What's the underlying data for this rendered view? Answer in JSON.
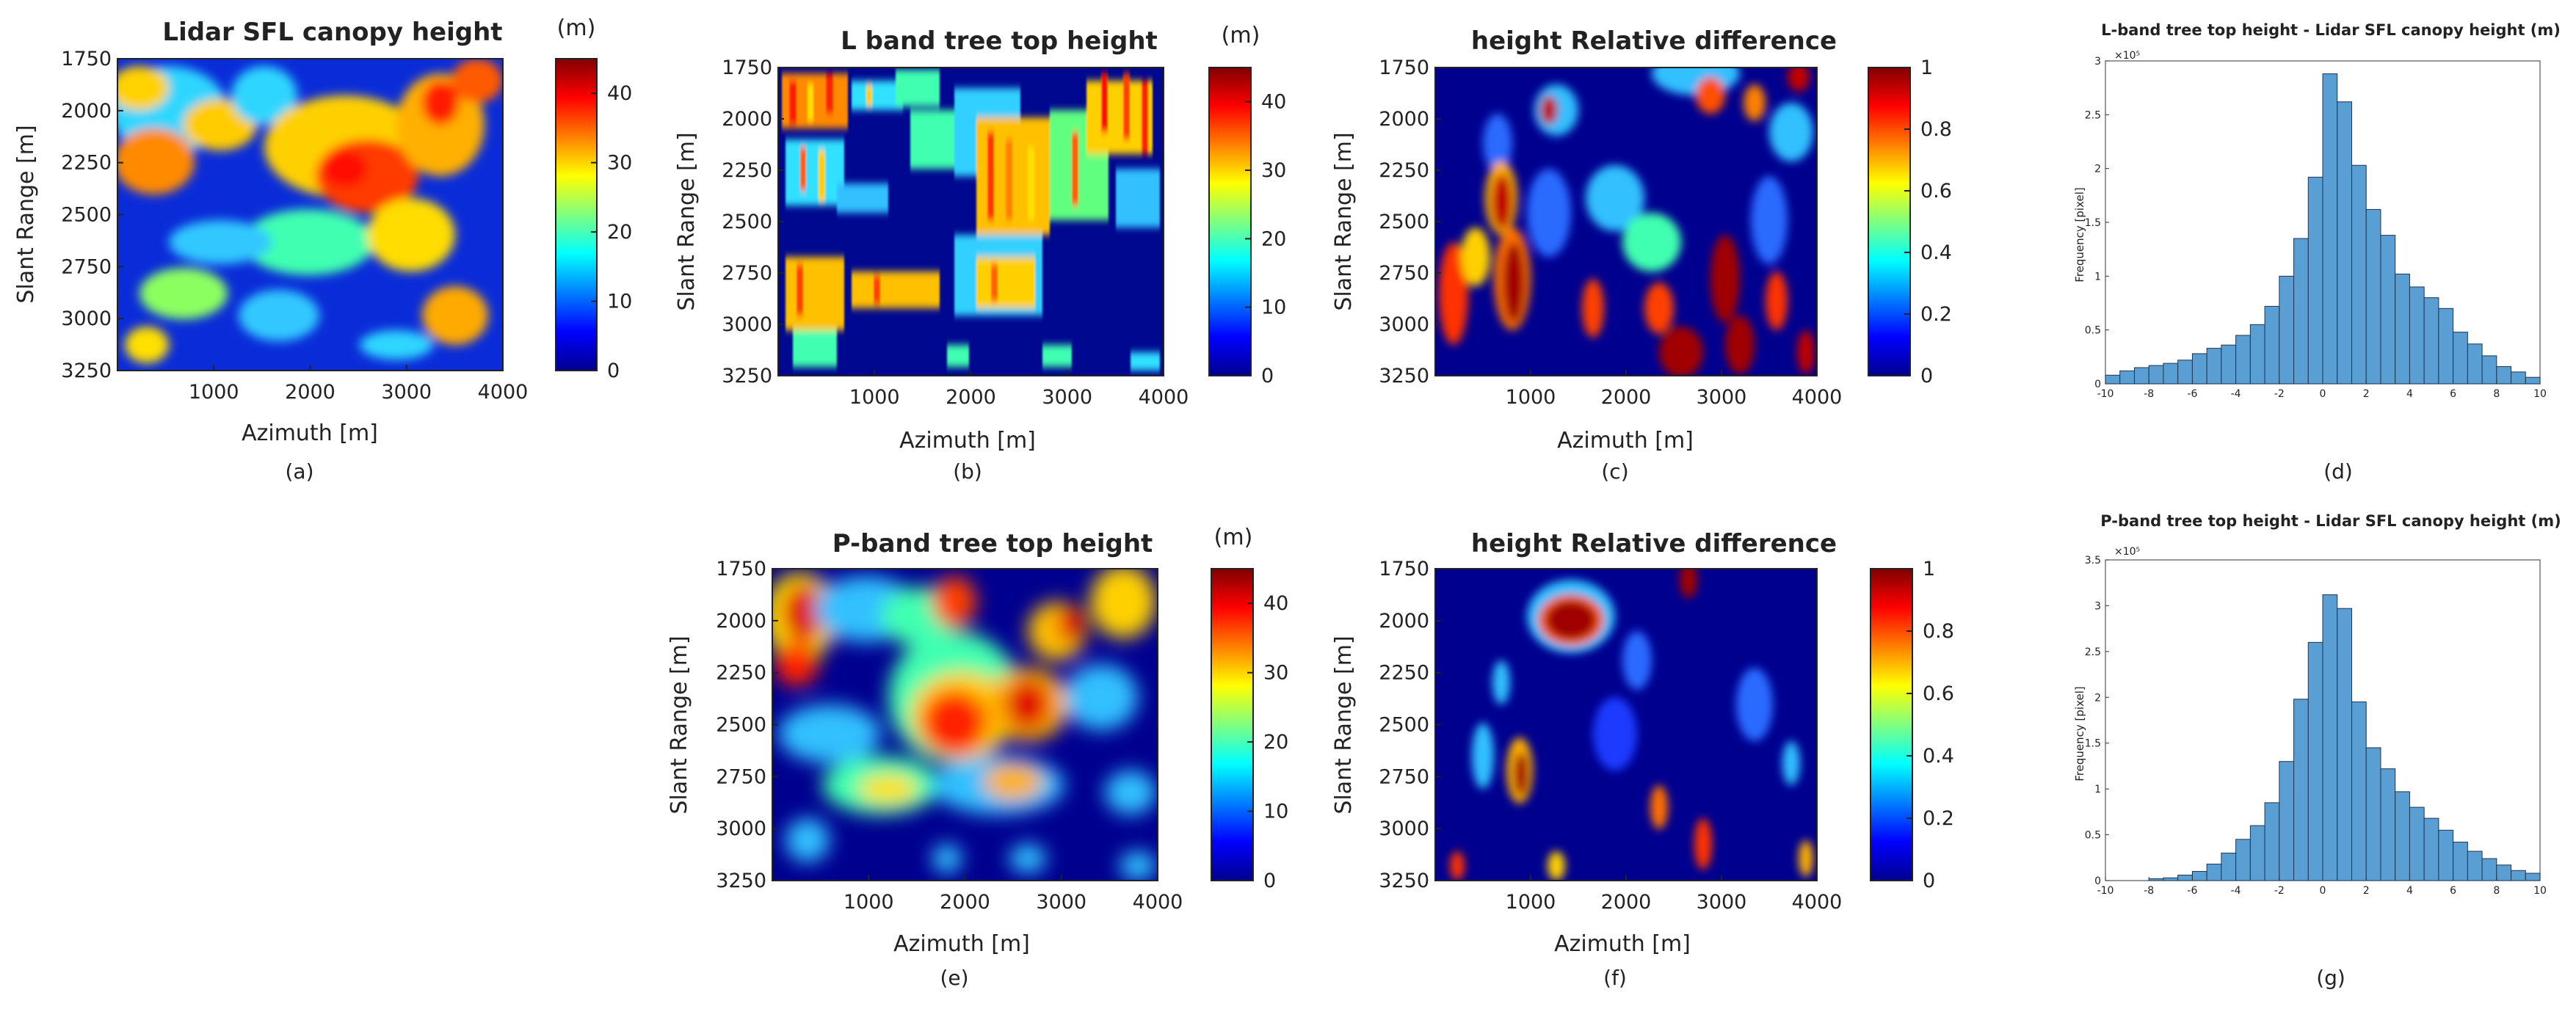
{
  "chart_data": [
    {
      "id": "a",
      "type": "heatmap",
      "title": "Lidar SFL canopy height",
      "unit": "(m)",
      "xlabel": "Azimuth [m]",
      "ylabel": "Slant Range [m]",
      "xlim": [
        0,
        4000
      ],
      "ylim": [
        1750,
        3250
      ],
      "xticks": [
        "1000",
        "2000",
        "3000",
        "4000"
      ],
      "yticks": [
        "1750",
        "2000",
        "2250",
        "2500",
        "2750",
        "3000",
        "3250"
      ],
      "colorbar": {
        "colormap": "jet",
        "range": [
          0,
          45
        ],
        "ticks": [
          "0",
          "10",
          "20",
          "30",
          "40"
        ]
      },
      "caption": "(a)"
    },
    {
      "id": "b",
      "type": "heatmap",
      "title": "L band tree top height",
      "unit": "(m)",
      "xlabel": "Azimuth [m]",
      "ylabel": "Slant Range [m]",
      "xlim": [
        0,
        4000
      ],
      "ylim": [
        1750,
        3250
      ],
      "xticks": [
        "1000",
        "2000",
        "3000",
        "4000"
      ],
      "yticks": [
        "1750",
        "2000",
        "2250",
        "2500",
        "2750",
        "3000",
        "3250"
      ],
      "colorbar": {
        "colormap": "jet",
        "range": [
          0,
          45
        ],
        "ticks": [
          "0",
          "10",
          "20",
          "30",
          "40"
        ]
      },
      "caption": "(b)"
    },
    {
      "id": "c",
      "type": "heatmap",
      "title": "height Relative difference",
      "unit": "",
      "xlabel": "Azimuth [m]",
      "ylabel": "Slant Range [m]",
      "xlim": [
        0,
        4000
      ],
      "ylim": [
        1750,
        3250
      ],
      "xticks": [
        "1000",
        "2000",
        "3000",
        "4000"
      ],
      "yticks": [
        "1750",
        "2000",
        "2250",
        "2500",
        "2750",
        "3000",
        "3250"
      ],
      "colorbar": {
        "colormap": "jet",
        "range": [
          0,
          1
        ],
        "ticks": [
          "0",
          "0.2",
          "0.4",
          "0.6",
          "0.8",
          "1"
        ]
      },
      "caption": "(c)"
    },
    {
      "id": "d",
      "type": "bar",
      "title": "L-band tree top height - Lidar SFL canopy height (m)",
      "xlabel": "",
      "ylabel": "Frequency [pixel]",
      "exponent": "×10⁵",
      "xlim": [
        -10,
        10
      ],
      "ylim": [
        0,
        3
      ],
      "xticks": [
        "-10",
        "-8",
        "-6",
        "-4",
        "-2",
        "0",
        "2",
        "4",
        "6",
        "8",
        "10"
      ],
      "yticks": [
        "0",
        "0.5",
        "1",
        "1.5",
        "2",
        "2.5",
        "3"
      ],
      "bin_edges_start": -10,
      "bin_width": 0.6667,
      "values": [
        0.08,
        0.12,
        0.15,
        0.17,
        0.19,
        0.22,
        0.28,
        0.33,
        0.36,
        0.45,
        0.55,
        0.72,
        1.0,
        1.35,
        1.92,
        2.88,
        2.62,
        2.03,
        1.62,
        1.38,
        1.02,
        0.9,
        0.8,
        0.7,
        0.48,
        0.37,
        0.26,
        0.16,
        0.11,
        0.06
      ],
      "caption": "(d)"
    },
    {
      "id": "e",
      "type": "heatmap",
      "title": "P-band tree top height",
      "unit": "(m)",
      "xlabel": "Azimuth [m]",
      "ylabel": "Slant Range [m]",
      "xlim": [
        0,
        4000
      ],
      "ylim": [
        1750,
        3250
      ],
      "xticks": [
        "1000",
        "2000",
        "3000",
        "4000"
      ],
      "yticks": [
        "1750",
        "2000",
        "2250",
        "2500",
        "2750",
        "3000",
        "3250"
      ],
      "colorbar": {
        "colormap": "jet",
        "range": [
          0,
          45
        ],
        "ticks": [
          "0",
          "10",
          "20",
          "30",
          "40"
        ]
      },
      "caption": "(e)"
    },
    {
      "id": "f",
      "type": "heatmap",
      "title": "height Relative difference",
      "unit": "",
      "xlabel": "Azimuth [m]",
      "ylabel": "Slant Range [m]",
      "xlim": [
        0,
        4000
      ],
      "ylim": [
        1750,
        3250
      ],
      "xticks": [
        "1000",
        "2000",
        "3000",
        "4000"
      ],
      "yticks": [
        "1750",
        "2000",
        "2250",
        "2500",
        "2750",
        "3000",
        "3250"
      ],
      "colorbar": {
        "colormap": "jet",
        "range": [
          0,
          1
        ],
        "ticks": [
          "0",
          "0.2",
          "0.4",
          "0.6",
          "0.8",
          "1"
        ]
      },
      "caption": "(f)"
    },
    {
      "id": "g",
      "type": "bar",
      "title": "P-band tree top height - Lidar SFL canopy height (m)",
      "xlabel": "",
      "ylabel": "Frequency [pixel]",
      "exponent": "×10⁵",
      "xlim": [
        -10,
        10
      ],
      "ylim": [
        0,
        3.5
      ],
      "xticks": [
        "-10",
        "-8",
        "-6",
        "-4",
        "-2",
        "0",
        "2",
        "4",
        "6",
        "8",
        "10"
      ],
      "yticks": [
        "0",
        "0.5",
        "1",
        "1.5",
        "2",
        "2.5",
        "3",
        "3.5"
      ],
      "bin_edges_start": -10,
      "bin_width": 0.6667,
      "values": [
        0.0,
        0.0,
        0.0,
        0.02,
        0.03,
        0.06,
        0.1,
        0.18,
        0.3,
        0.45,
        0.6,
        0.85,
        1.3,
        1.98,
        2.6,
        3.12,
        2.97,
        1.95,
        1.45,
        1.22,
        0.97,
        0.8,
        0.68,
        0.55,
        0.42,
        0.32,
        0.24,
        0.17,
        0.11,
        0.08
      ],
      "caption": "(g)"
    }
  ]
}
